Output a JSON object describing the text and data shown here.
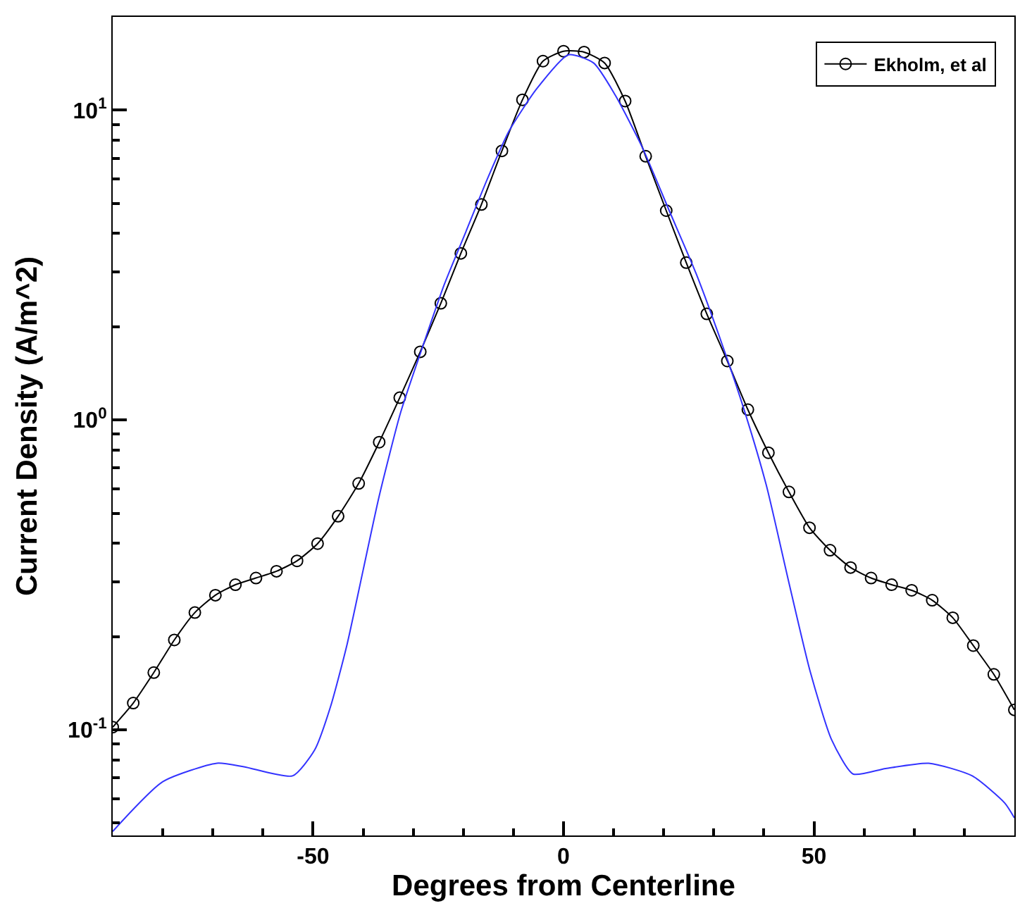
{
  "chart_data": {
    "type": "line",
    "xlabel": "Degrees from Centerline",
    "ylabel": "Current Density (A/m^2)",
    "log": "y",
    "legend": "top right",
    "line_style": "solid",
    "xlim": [
      -90,
      90
    ],
    "ylim": [
      0.0456,
      20
    ],
    "xticks": [
      {
        "value": -80,
        "label": null
      },
      {
        "value": -70,
        "label": null
      },
      {
        "value": -60,
        "label": null
      },
      -50,
      {
        "value": -40,
        "label": null
      },
      {
        "value": -30,
        "label": null
      },
      {
        "value": -20,
        "label": null
      },
      {
        "value": -10,
        "label": null
      },
      0,
      {
        "value": 10,
        "label": null
      },
      {
        "value": 20,
        "label": null
      },
      {
        "value": 30,
        "label": null
      },
      {
        "value": 40,
        "label": null
      },
      50,
      {
        "value": 60,
        "label": null
      },
      {
        "value": 70,
        "label": null
      },
      {
        "value": 80,
        "label": null
      }
    ],
    "yticks": [
      {
        "value": 0.05,
        "label": null
      },
      {
        "value": 0.06,
        "label": null
      },
      {
        "value": 0.07,
        "label": null
      },
      {
        "value": 0.08,
        "label": null
      },
      {
        "value": 0.09,
        "label": null
      },
      {
        "value": 0.1,
        "label": "10$^{-1}$"
      },
      {
        "value": 0.2,
        "label": null
      },
      {
        "value": 0.3,
        "label": null
      },
      {
        "value": 0.4,
        "label": null
      },
      {
        "value": 0.5,
        "label": null
      },
      {
        "value": 0.6,
        "label": null
      },
      {
        "value": 0.7,
        "label": null
      },
      {
        "value": 0.8,
        "label": null
      },
      {
        "value": 0.9,
        "label": null
      },
      {
        "value": 1,
        "label": "10$^{0}$"
      },
      {
        "value": 2,
        "label": null
      },
      {
        "value": 3,
        "label": null
      },
      {
        "value": 4,
        "label": null
      },
      {
        "value": 5,
        "label": null
      },
      {
        "value": 6,
        "label": null
      },
      {
        "value": 7,
        "label": null
      },
      {
        "value": 8,
        "label": null
      },
      {
        "value": 9,
        "label": null
      },
      {
        "value": 10,
        "label": "10$^{1}$"
      }
    ],
    "series": [
      {
        "name": "Ekholm, et al",
        "color": "#000000",
        "marker": "circle",
        "x": [
          -90,
          -85.9,
          -81.8,
          -77.7,
          -73.6,
          -69.5,
          -65.5,
          -61.4,
          -57.3,
          -53.2,
          -49.1,
          -45,
          -40.9,
          -36.8,
          -32.7,
          -28.6,
          -24.5,
          -20.5,
          -16.4,
          -12.3,
          -8.2,
          -4.1,
          0,
          4.1,
          8.2,
          12.3,
          16.4,
          20.5,
          24.5,
          28.6,
          32.7,
          36.8,
          40.9,
          45,
          49.1,
          53.2,
          57.3,
          61.4,
          65.5,
          69.5,
          73.6,
          77.7,
          81.8,
          85.9,
          90
        ],
        "values": [
          0.102,
          0.122,
          0.153,
          0.195,
          0.239,
          0.272,
          0.294,
          0.309,
          0.325,
          0.351,
          0.399,
          0.489,
          0.624,
          0.848,
          1.18,
          1.66,
          2.38,
          3.45,
          4.96,
          7.39,
          10.8,
          14.4,
          15.5,
          15.4,
          14.2,
          10.7,
          7.1,
          4.74,
          3.22,
          2.2,
          1.55,
          1.08,
          0.784,
          0.586,
          0.449,
          0.38,
          0.334,
          0.309,
          0.294,
          0.282,
          0.262,
          0.23,
          0.187,
          0.151,
          0.116
        ]
      },
      {
        "color": "#3333ff",
        "marker": "none",
        "x": [
          -90,
          -80,
          -69.2,
          -63.8,
          -54.1,
          -49.7,
          -46.5,
          -43.2,
          -40,
          -36.8,
          -32.5,
          -28.2,
          -23.8,
          -19.5,
          -15.2,
          -10.9,
          -5.4,
          1,
          6,
          10.3,
          15.7,
          21.1,
          26.5,
          31.9,
          36.2,
          40.5,
          44.9,
          49.2,
          53.5,
          57.8,
          64.3,
          72.9,
          81.6,
          88.1,
          90
        ],
        "values": [
          0.047,
          0.068,
          0.078,
          0.076,
          0.071,
          0.086,
          0.119,
          0.189,
          0.328,
          0.568,
          1.06,
          1.71,
          2.74,
          4.05,
          6.0,
          8.55,
          11.7,
          15.1,
          14.2,
          11.2,
          7.6,
          4.74,
          2.96,
          1.71,
          1.06,
          0.614,
          0.303,
          0.155,
          0.093,
          0.072,
          0.075,
          0.078,
          0.071,
          0.058,
          0.052
        ]
      }
    ]
  }
}
